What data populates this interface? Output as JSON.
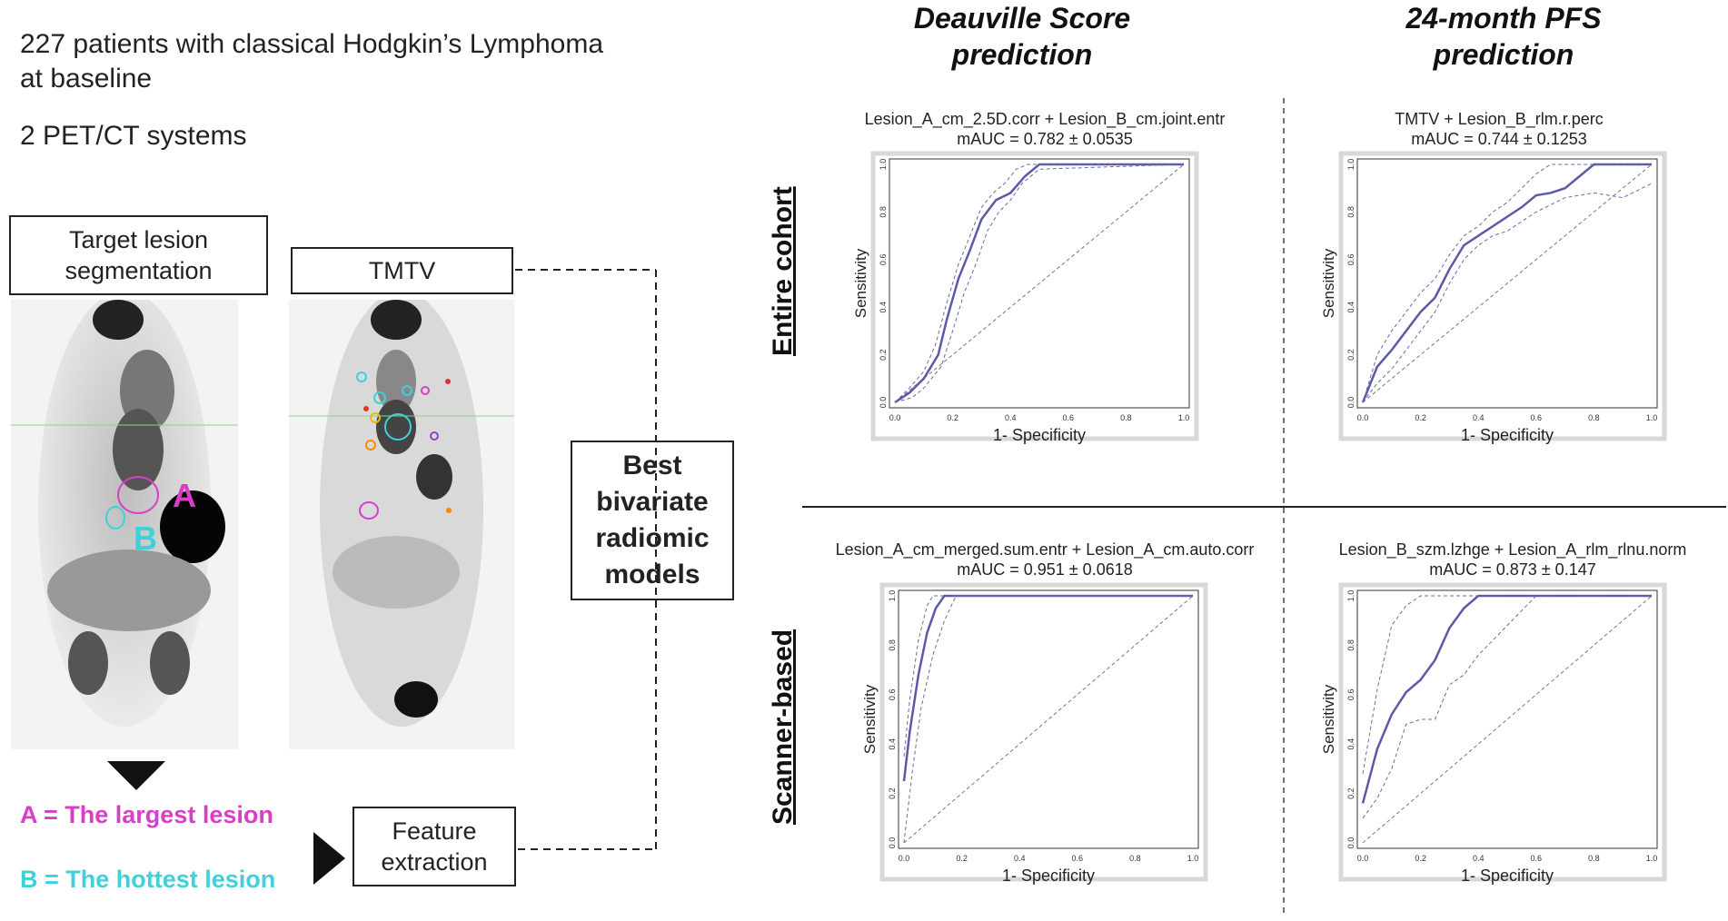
{
  "intro": {
    "line1": "227 patients with classical Hodgkin’s Lymphoma",
    "line2": "at baseline",
    "line3": "2 PET/CT systems"
  },
  "boxes": {
    "segmentation": [
      "Target lesion",
      "segmentation"
    ],
    "tmtv": "TMTV",
    "best_models": [
      "Best",
      "bivariate",
      "radiomic",
      "models"
    ],
    "feature_extraction": [
      "Feature",
      "extraction"
    ]
  },
  "scan_labels": {
    "a": "A",
    "b": "B"
  },
  "legend": {
    "a": "A = The largest lesion",
    "b": "B = The hottest lesion"
  },
  "colors": {
    "lesion_a": "#d83fc6",
    "lesion_b": "#3fd0d8",
    "roc_line": "#5a5aa8"
  },
  "columns": [
    [
      "Deauville Score",
      "prediction"
    ],
    [
      "24-month PFS",
      "prediction"
    ]
  ],
  "rows": [
    "Entire cohort",
    "Scanner-based"
  ],
  "chart_data": [
    {
      "type": "line",
      "title": "Lesion_A_cm_2.5D.corr + Lesion_B_cm.joint.entr",
      "subtitle": "mAUC = 0.782 ± 0.0535",
      "xlabel": "1- Specificity",
      "ylabel": "Sensitivity",
      "xlim": [
        0,
        1
      ],
      "ylim": [
        0,
        1
      ],
      "ticks": [
        "0.0",
        "0.2",
        "0.4",
        "0.6",
        "0.8",
        "1.0"
      ],
      "series": [
        {
          "x": [
            0,
            0.05,
            0.1,
            0.15,
            0.18,
            0.22,
            0.26,
            0.3,
            0.35,
            0.4,
            0.45,
            0.5,
            1.0
          ],
          "y": [
            0,
            0.04,
            0.1,
            0.2,
            0.35,
            0.52,
            0.64,
            0.77,
            0.85,
            0.88,
            0.95,
            1.0,
            1.0
          ]
        },
        {
          "x": [
            0,
            0.05,
            0.1,
            0.14,
            0.18,
            0.22,
            0.26,
            0.3,
            0.34,
            0.38,
            0.42,
            0.46,
            0.5,
            1.0
          ],
          "y": [
            0,
            0.06,
            0.13,
            0.24,
            0.42,
            0.58,
            0.7,
            0.82,
            0.88,
            0.92,
            0.98,
            1.0,
            1.0,
            1.0
          ],
          "dashed": true
        },
        {
          "x": [
            0,
            0.06,
            0.1,
            0.16,
            0.2,
            0.24,
            0.28,
            0.32,
            0.36,
            0.4,
            0.44,
            0.5,
            1.0
          ],
          "y": [
            0,
            0.02,
            0.06,
            0.15,
            0.3,
            0.46,
            0.58,
            0.72,
            0.8,
            0.85,
            0.92,
            0.98,
            1.0
          ],
          "dashed": true
        }
      ]
    },
    {
      "type": "line",
      "title": "TMTV + Lesion_B_rlm.r.perc",
      "subtitle": "mAUC = 0.744 ± 0.1253",
      "xlabel": "1- Specificity",
      "ylabel": "Sensitivity",
      "xlim": [
        0,
        1
      ],
      "ylim": [
        0,
        1
      ],
      "ticks": [
        "0.0",
        "0.2",
        "0.4",
        "0.6",
        "0.8",
        "1.0"
      ],
      "series": [
        {
          "x": [
            0,
            0.05,
            0.1,
            0.15,
            0.2,
            0.25,
            0.3,
            0.35,
            0.4,
            0.45,
            0.5,
            0.55,
            0.6,
            0.65,
            0.7,
            0.8,
            1.0
          ],
          "y": [
            0,
            0.15,
            0.22,
            0.3,
            0.38,
            0.44,
            0.56,
            0.66,
            0.7,
            0.74,
            0.78,
            0.82,
            0.87,
            0.88,
            0.9,
            1.0,
            1.0
          ]
        },
        {
          "x": [
            0,
            0.05,
            0.1,
            0.15,
            0.2,
            0.25,
            0.3,
            0.35,
            0.4,
            0.45,
            0.5,
            0.55,
            0.6,
            0.65,
            0.7,
            0.8,
            1.0
          ],
          "y": [
            0,
            0.2,
            0.3,
            0.38,
            0.46,
            0.52,
            0.62,
            0.7,
            0.74,
            0.8,
            0.84,
            0.9,
            0.96,
            1.0,
            1.0,
            1.0,
            1.0
          ],
          "dashed": true
        },
        {
          "x": [
            0,
            0.05,
            0.1,
            0.15,
            0.2,
            0.25,
            0.3,
            0.35,
            0.4,
            0.45,
            0.5,
            0.55,
            0.6,
            0.7,
            0.8,
            0.9,
            1.0
          ],
          "y": [
            0,
            0.08,
            0.14,
            0.22,
            0.3,
            0.38,
            0.5,
            0.6,
            0.66,
            0.7,
            0.72,
            0.76,
            0.8,
            0.86,
            0.88,
            0.86,
            0.92
          ],
          "dashed": true
        }
      ]
    },
    {
      "type": "line",
      "title": "Lesion_A_cm_merged.sum.entr + Lesion_A_cm.auto.corr",
      "subtitle": "mAUC = 0.951 ± 0.0618",
      "xlabel": "1- Specificity",
      "ylabel": "Sensitivity",
      "xlim": [
        0,
        1
      ],
      "ylim": [
        0,
        1
      ],
      "ticks": [
        "0.0",
        "0.2",
        "0.4",
        "0.6",
        "0.8",
        "1.0"
      ],
      "series": [
        {
          "x": [
            0,
            0.02,
            0.05,
            0.08,
            0.11,
            0.14,
            1.0
          ],
          "y": [
            0.25,
            0.45,
            0.68,
            0.85,
            0.95,
            1.0,
            1.0
          ]
        },
        {
          "x": [
            0,
            0.02,
            0.05,
            0.08,
            0.1,
            1.0
          ],
          "y": [
            0.35,
            0.58,
            0.82,
            0.96,
            1.0,
            1.0
          ],
          "dashed": true
        },
        {
          "x": [
            0,
            0.03,
            0.06,
            0.1,
            0.14,
            0.18,
            1.0
          ],
          "y": [
            0,
            0.3,
            0.55,
            0.76,
            0.9,
            1.0,
            1.0
          ],
          "dashed": true
        }
      ]
    },
    {
      "type": "line",
      "title": "Lesion_B_szm.lzhge + Lesion_A_rlm_rlnu.norm",
      "subtitle": "mAUC = 0.873 ± 0.147",
      "xlabel": "1- Specificity",
      "ylabel": "Sensitivity",
      "xlim": [
        0,
        1
      ],
      "ylim": [
        0,
        1
      ],
      "ticks": [
        "0.0",
        "0.2",
        "0.4",
        "0.6",
        "0.8",
        "1.0"
      ],
      "series": [
        {
          "x": [
            0,
            0.05,
            0.1,
            0.15,
            0.2,
            0.25,
            0.3,
            0.35,
            0.4,
            1.0
          ],
          "y": [
            0.16,
            0.38,
            0.52,
            0.61,
            0.66,
            0.74,
            0.87,
            0.95,
            1.0,
            1.0
          ]
        },
        {
          "x": [
            0,
            0.05,
            0.1,
            0.15,
            0.2,
            0.25,
            0.3,
            1.0
          ],
          "y": [
            0.28,
            0.62,
            0.88,
            0.96,
            1.0,
            1.0,
            1.0,
            1.0
          ],
          "dashed": true
        },
        {
          "x": [
            0,
            0.05,
            0.1,
            0.15,
            0.2,
            0.25,
            0.3,
            0.35,
            0.4,
            0.5,
            0.6,
            1.0
          ],
          "y": [
            0.1,
            0.18,
            0.3,
            0.48,
            0.5,
            0.5,
            0.64,
            0.68,
            0.76,
            0.88,
            1.0,
            1.0
          ],
          "dashed": true
        }
      ]
    }
  ]
}
